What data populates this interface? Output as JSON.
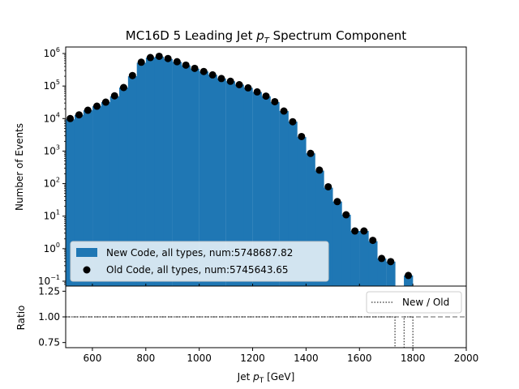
{
  "chart_data": [
    {
      "panel": "main",
      "type": "bar",
      "title": "MC16D 5 Leading Jet p_T Spectrum Component",
      "title_main": "MC16D 5 Leading Jet ",
      "title_p": "p",
      "title_sub": "T",
      "title_tail": " Spectrum Component",
      "ylabel": "Number of Events",
      "yscale": "log",
      "xlim": [
        500,
        2000
      ],
      "ylim_log10": [
        -1.15,
        6.2
      ],
      "y_ticks": [
        {
          "exp": 6,
          "label_base": "10",
          "label_exp": "6"
        },
        {
          "exp": 5,
          "label_base": "10",
          "label_exp": "5"
        },
        {
          "exp": 4,
          "label_base": "10",
          "label_exp": "4"
        },
        {
          "exp": 3,
          "label_base": "10",
          "label_exp": "3"
        },
        {
          "exp": 2,
          "label_base": "10",
          "label_exp": "2"
        },
        {
          "exp": 1,
          "label_base": "10",
          "label_exp": "1"
        },
        {
          "exp": 0,
          "label_base": "10",
          "label_exp": "0"
        },
        {
          "exp": -1,
          "label_base": "10",
          "label_exp": "−1"
        }
      ],
      "bin_width": 33.33,
      "bin_centers": [
        517,
        550,
        583,
        617,
        650,
        683,
        717,
        750,
        783,
        817,
        850,
        883,
        917,
        950,
        983,
        1017,
        1050,
        1083,
        1117,
        1150,
        1183,
        1217,
        1250,
        1283,
        1317,
        1350,
        1383,
        1417,
        1450,
        1483,
        1517,
        1550,
        1583,
        1617,
        1650,
        1683,
        1717,
        1750,
        1783
      ],
      "series": [
        {
          "name": "New Code, all types, num:5748687.82",
          "style": "filled-step",
          "color": "#1f77b4",
          "values": [
            9500,
            13000,
            18000,
            24000,
            32000,
            48000,
            90000,
            200000,
            520000,
            750000,
            800000,
            680000,
            550000,
            430000,
            340000,
            280000,
            220000,
            170000,
            140000,
            110000,
            88000,
            65000,
            48000,
            32000,
            17000,
            8000,
            2700,
            850,
            250,
            75,
            28,
            11,
            3.5,
            3.5,
            1.7,
            0.5,
            0.4,
            0.05,
            0.15
          ]
        },
        {
          "name": "Old Code, all types, num:5745643.65",
          "style": "markers",
          "color": "#000000",
          "values": [
            10000,
            13000,
            18000,
            24000,
            32000,
            50000,
            90000,
            210000,
            540000,
            750000,
            820000,
            700000,
            560000,
            440000,
            350000,
            280000,
            220000,
            170000,
            140000,
            110000,
            88000,
            66000,
            49000,
            33000,
            17000,
            8000,
            2800,
            850,
            260,
            80,
            28,
            11,
            3.5,
            3.5,
            1.8,
            0.5,
            0.4,
            null,
            0.15
          ]
        }
      ],
      "legend_location": "lower-left"
    },
    {
      "panel": "ratio",
      "type": "line",
      "ylabel": "Ratio",
      "xlabel": "Jet p_T [GeV]",
      "xlabel_main": "Jet ",
      "xlabel_p": "p",
      "xlabel_sub": "T",
      "xlabel_tail": " [GeV]",
      "xlim": [
        500,
        2000
      ],
      "ylim": [
        0.7,
        1.3
      ],
      "x_ticks": [
        600,
        800,
        1000,
        1200,
        1400,
        1600,
        1800,
        2000
      ],
      "y_ticks": [
        "0.75",
        "1.00",
        "1.25"
      ],
      "reference_line": 1.0,
      "series": [
        {
          "name": "New / Old",
          "style": "dotted-step",
          "x": [
            500,
            1733,
            1733,
            1767,
            1767,
            1800,
            1800
          ],
          "y": [
            1.0,
            1.0,
            0.6,
            0.6,
            1.0,
            1.0,
            0.6
          ]
        }
      ],
      "legend_location": "upper-right"
    }
  ]
}
